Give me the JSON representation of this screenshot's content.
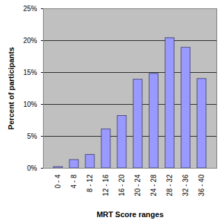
{
  "chart_data": {
    "type": "bar",
    "x_label": "MRT Score ranges",
    "y_label": "Percent of participants",
    "categories": [
      "0 - 4",
      "4 - 8",
      "8 - 12",
      "12 - 16",
      "16 - 20",
      "20 - 24",
      "24 - 28",
      "28 - 32",
      "32 - 36",
      "36 - 40"
    ],
    "values": [
      0.2,
      1.3,
      2.1,
      6.1,
      8.2,
      13.9,
      14.8,
      20.4,
      18.9,
      14.0
    ],
    "color": "#9999ff",
    "ylim": [
      0,
      25
    ],
    "yticks": [
      {
        "value": 0,
        "label": "0%"
      },
      {
        "value": 5,
        "label": "5%"
      },
      {
        "value": 10,
        "label": "10%"
      },
      {
        "value": 15,
        "label": "15%"
      },
      {
        "value": 20,
        "label": "20%"
      },
      {
        "value": 25,
        "label": "25%"
      }
    ],
    "grid": true
  }
}
